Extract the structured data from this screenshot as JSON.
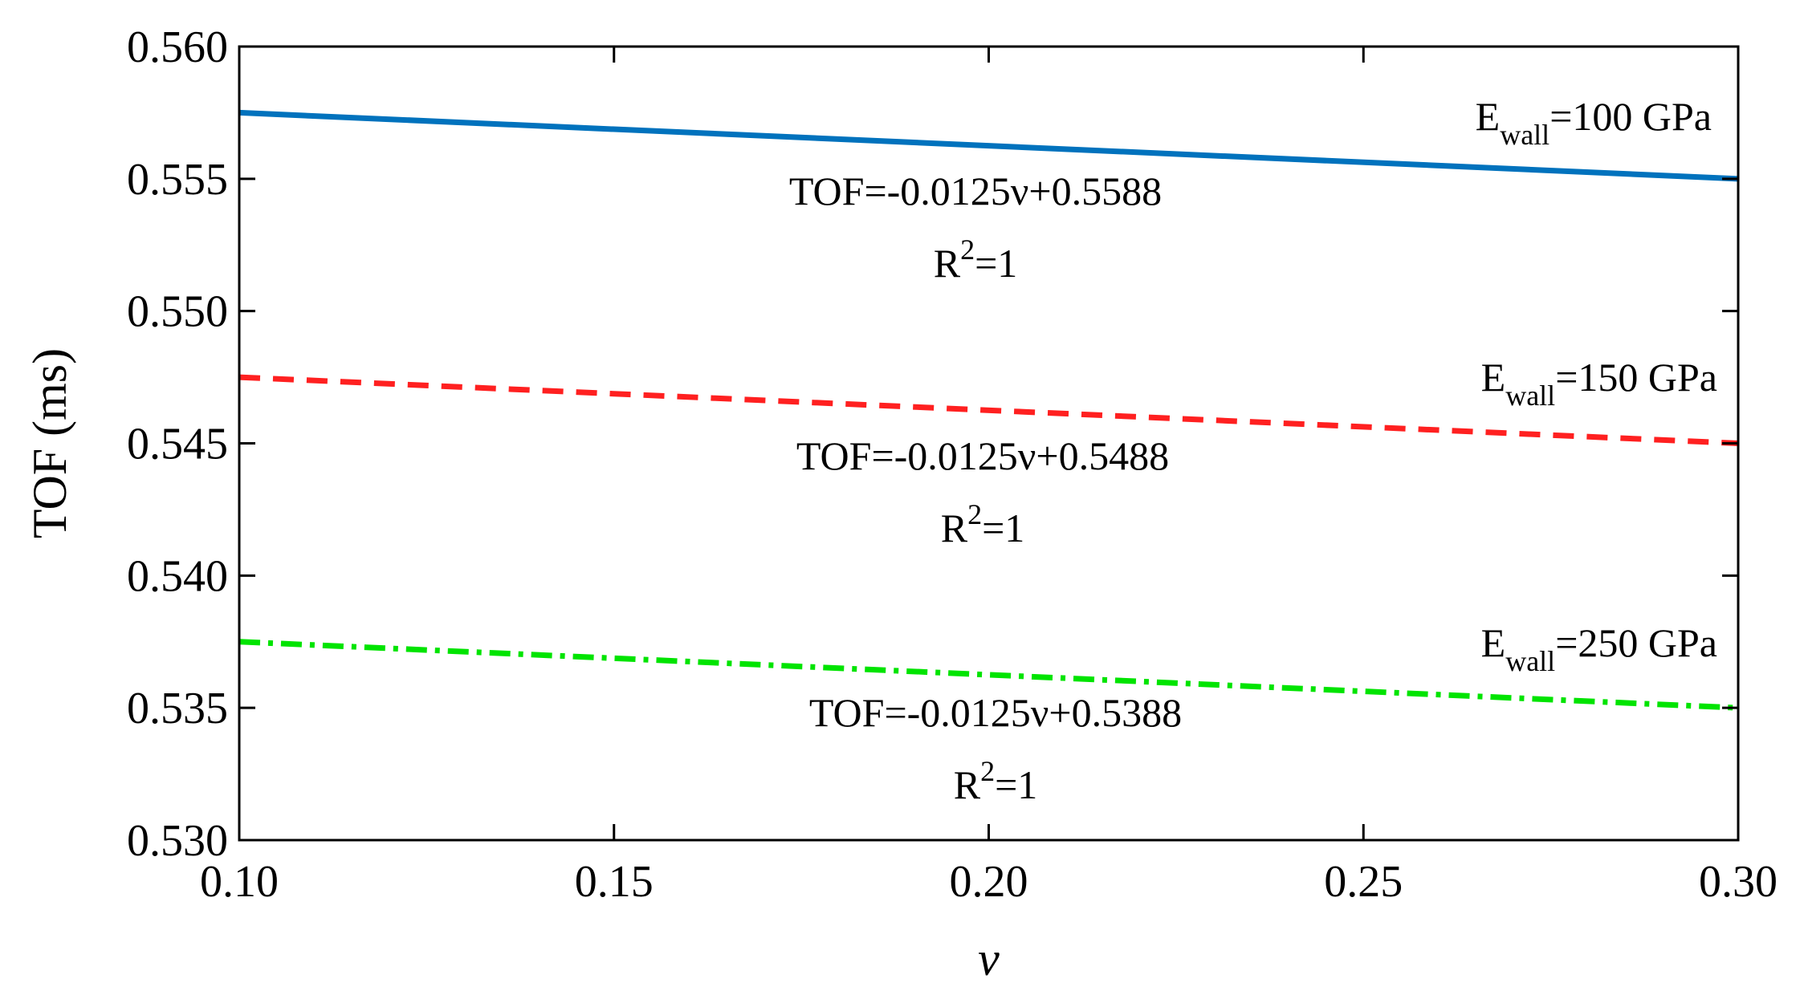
{
  "chart_data": {
    "type": "line",
    "xlabel": "ν",
    "ylabel": "TOF (ms)",
    "xlim": [
      0.1,
      0.3
    ],
    "ylim": [
      0.53,
      0.56
    ],
    "x_ticks": [
      0.1,
      0.15,
      0.2,
      0.25,
      0.3
    ],
    "x_tick_labels": [
      "0.10",
      "0.15",
      "0.20",
      "0.25",
      "0.30"
    ],
    "y_ticks": [
      0.53,
      0.535,
      0.54,
      0.545,
      0.55,
      0.555,
      0.56
    ],
    "y_tick_labels": [
      "0.530",
      "0.535",
      "0.540",
      "0.545",
      "0.550",
      "0.555",
      "0.560"
    ],
    "series": [
      {
        "name": "E_wall=100 GPa",
        "label_main": "E",
        "label_sub": "wall",
        "label_value": "=100 GPa",
        "color": "#0072BD",
        "style": "solid",
        "x": [
          0.1,
          0.3
        ],
        "y": [
          0.5575,
          0.555
        ],
        "equation": "TOF=-0.0125ν+0.5588",
        "r2_prefix": "R",
        "r2_sup": "2",
        "r2_suffix": "=1"
      },
      {
        "name": "E_wall=150 GPa",
        "label_main": "E",
        "label_sub": "wall",
        "label_value": "=150 GPa",
        "color": "#FF2020",
        "style": "dashed",
        "x": [
          0.1,
          0.3
        ],
        "y": [
          0.5475,
          0.545
        ],
        "equation": "TOF=-0.0125ν+0.5488",
        "r2_prefix": "R",
        "r2_sup": "2",
        "r2_suffix": "=1"
      },
      {
        "name": "E_wall=250 GPa",
        "label_main": "E",
        "label_sub": "wall",
        "label_value": "=250 GPa",
        "color": "#00E400",
        "style": "dashdot",
        "x": [
          0.1,
          0.3
        ],
        "y": [
          0.5375,
          0.535
        ],
        "equation": "TOF=-0.0125ν+0.5388",
        "r2_prefix": "R",
        "r2_sup": "2",
        "r2_suffix": "=1"
      }
    ]
  }
}
